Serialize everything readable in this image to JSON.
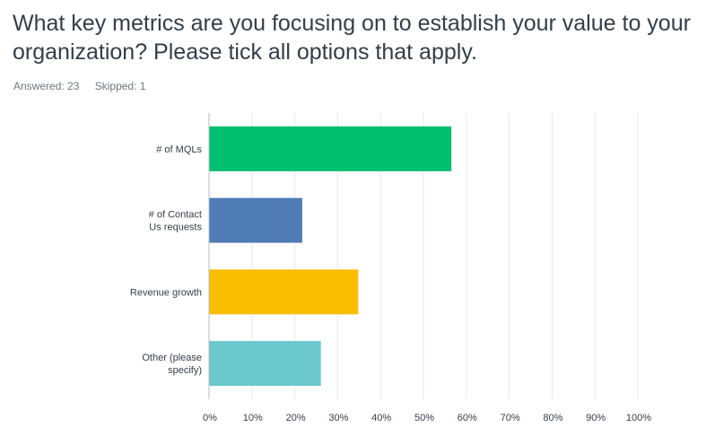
{
  "question": {
    "title": "What key metrics are you focusing on to establish your value to your organization? Please tick all options that apply."
  },
  "stats": {
    "answered": "Answered: 23",
    "skipped": "Skipped: 1"
  },
  "chart_data": {
    "type": "bar",
    "orientation": "horizontal",
    "categories": [
      [
        "# of MQLs"
      ],
      [
        "# of Contact",
        "Us requests"
      ],
      [
        "Revenue growth"
      ],
      [
        "Other (please",
        "specify)"
      ]
    ],
    "values": [
      56.52,
      21.74,
      34.78,
      26.09
    ],
    "colors": [
      "#00bf6f",
      "#507cb6",
      "#f9be00",
      "#6bc8cd"
    ],
    "xlim": [
      0,
      100
    ],
    "xticks": [
      0,
      10,
      20,
      30,
      40,
      50,
      60,
      70,
      80,
      90,
      100
    ],
    "xtick_labels": [
      "0%",
      "10%",
      "20%",
      "30%",
      "40%",
      "50%",
      "60%",
      "70%",
      "80%",
      "90%",
      "100%"
    ],
    "grid": "vertical",
    "title": "",
    "xlabel": "",
    "ylabel": ""
  }
}
